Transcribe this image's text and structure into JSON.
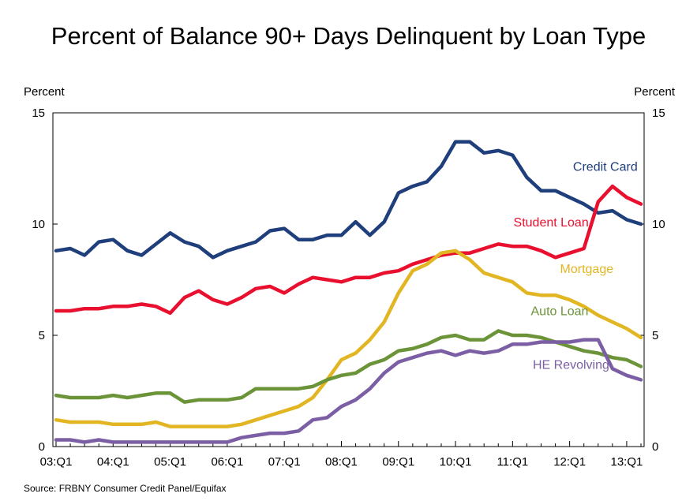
{
  "chart_data": {
    "type": "line",
    "title": "Percent of Balance 90+ Days Delinquent by Loan Type",
    "ylabel_left": "Percent",
    "ylabel_right": "Percent",
    "ylim": [
      0,
      15
    ],
    "y_ticks": [
      "0",
      "5",
      "10",
      "15"
    ],
    "xlim": [
      0,
      41
    ],
    "x_ticks": [
      {
        "pos": 0,
        "label": "03:Q1"
      },
      {
        "pos": 4,
        "label": "04:Q1"
      },
      {
        "pos": 8,
        "label": "05:Q1"
      },
      {
        "pos": 12,
        "label": "06:Q1"
      },
      {
        "pos": 16,
        "label": "07:Q1"
      },
      {
        "pos": 20,
        "label": "08:Q1"
      },
      {
        "pos": 24,
        "label": "09:Q1"
      },
      {
        "pos": 28,
        "label": "10:Q1"
      },
      {
        "pos": 32,
        "label": "11:Q1"
      },
      {
        "pos": 36,
        "label": "12:Q1"
      },
      {
        "pos": 40,
        "label": "13:Q1"
      }
    ],
    "grid": false,
    "series": [
      {
        "name": "Credit Card",
        "color": "#1f3e7c",
        "label_at": [
          38.5,
          12.4
        ],
        "label_anchor": "middle",
        "values": [
          8.8,
          8.9,
          8.6,
          9.2,
          9.3,
          8.8,
          8.6,
          9.1,
          9.6,
          9.2,
          9.0,
          8.5,
          8.8,
          9.0,
          9.2,
          9.7,
          9.8,
          9.3,
          9.3,
          9.5,
          9.5,
          10.1,
          9.5,
          10.1,
          11.4,
          11.7,
          11.9,
          12.6,
          13.7,
          13.7,
          13.2,
          13.3,
          13.1,
          12.1,
          11.5,
          11.5,
          11.2,
          10.9,
          10.5,
          10.6,
          10.2,
          10.0
        ]
      },
      {
        "name": "Student Loan",
        "color": "#e8102e",
        "label_at": [
          34.7,
          9.9
        ],
        "label_anchor": "middle",
        "values": [
          6.1,
          6.1,
          6.2,
          6.2,
          6.3,
          6.3,
          6.4,
          6.3,
          6.0,
          6.7,
          7.0,
          6.6,
          6.4,
          6.7,
          7.1,
          7.2,
          6.9,
          7.3,
          7.6,
          7.5,
          7.4,
          7.6,
          7.6,
          7.8,
          7.9,
          8.2,
          8.4,
          8.6,
          8.7,
          8.7,
          8.9,
          9.1,
          9.0,
          9.0,
          8.8,
          8.5,
          8.7,
          8.9,
          11.0,
          11.7,
          11.2,
          10.9
        ]
      },
      {
        "name": "Mortgage",
        "color": "#e2b523",
        "label_at": [
          37.2,
          7.8
        ],
        "label_anchor": "middle",
        "values": [
          1.2,
          1.1,
          1.1,
          1.1,
          1.0,
          1.0,
          1.0,
          1.1,
          0.9,
          0.9,
          0.9,
          0.9,
          0.9,
          1.0,
          1.2,
          1.4,
          1.6,
          1.8,
          2.2,
          3.0,
          3.9,
          4.2,
          4.8,
          5.6,
          6.9,
          7.9,
          8.2,
          8.7,
          8.8,
          8.4,
          7.8,
          7.6,
          7.4,
          6.9,
          6.8,
          6.8,
          6.6,
          6.3,
          5.9,
          5.6,
          5.3,
          4.9
        ]
      },
      {
        "name": "Auto Loan",
        "color": "#6b9438",
        "label_at": [
          35.3,
          5.9
        ],
        "label_anchor": "middle",
        "values": [
          2.3,
          2.2,
          2.2,
          2.2,
          2.3,
          2.2,
          2.3,
          2.4,
          2.4,
          2.0,
          2.1,
          2.1,
          2.1,
          2.2,
          2.6,
          2.6,
          2.6,
          2.6,
          2.7,
          3.0,
          3.2,
          3.3,
          3.7,
          3.9,
          4.3,
          4.4,
          4.6,
          4.9,
          5.0,
          4.8,
          4.8,
          5.2,
          5.0,
          5.0,
          4.9,
          4.7,
          4.5,
          4.3,
          4.2,
          4.0,
          3.9,
          3.6
        ]
      },
      {
        "name": "HE Revolving",
        "color": "#7b5ea3",
        "label_at": [
          36.1,
          3.5
        ],
        "label_anchor": "middle",
        "values": [
          0.3,
          0.3,
          0.2,
          0.3,
          0.2,
          0.2,
          0.2,
          0.2,
          0.2,
          0.2,
          0.2,
          0.2,
          0.2,
          0.4,
          0.5,
          0.6,
          0.6,
          0.7,
          1.2,
          1.3,
          1.8,
          2.1,
          2.6,
          3.3,
          3.8,
          4.0,
          4.2,
          4.3,
          4.1,
          4.3,
          4.2,
          4.3,
          4.6,
          4.6,
          4.7,
          4.7,
          4.7,
          4.8,
          4.8,
          3.5,
          3.2,
          3.0
        ]
      }
    ]
  },
  "source": "Source: FRBNY Consumer Credit Panel/Equifax"
}
